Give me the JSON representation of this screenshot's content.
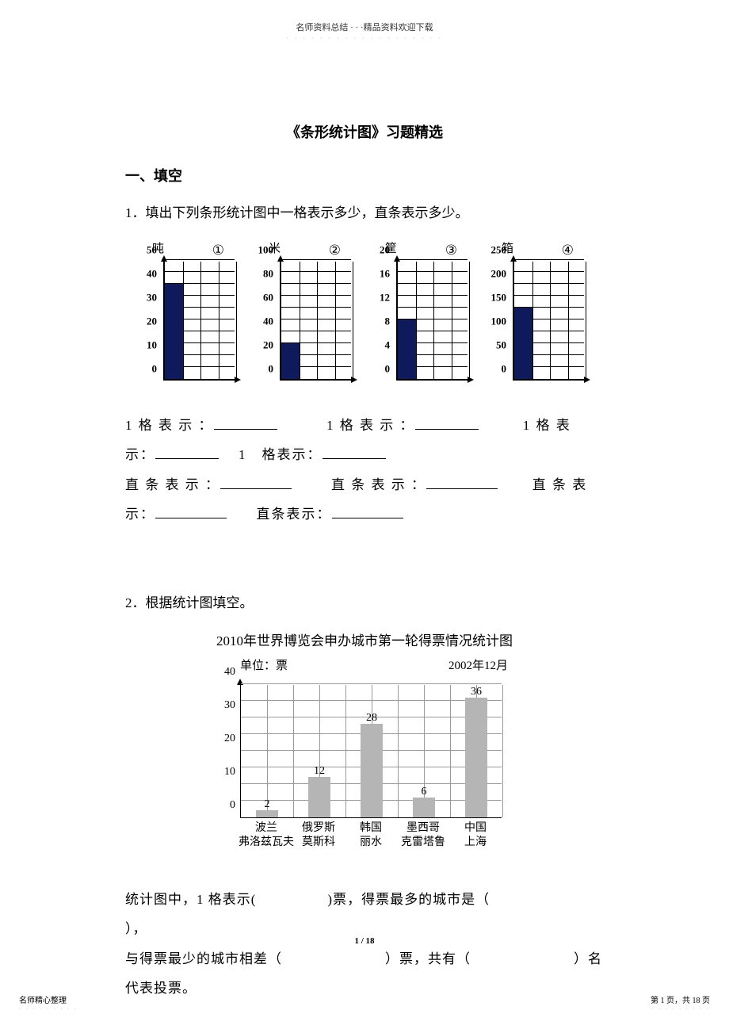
{
  "header": {
    "line1": "名师资料总结 · · ·精品资料欢迎下载",
    "dots": "· · · · · · · · · · · · · · · · · · ·"
  },
  "title": "《条形统计图》习题精选",
  "section": "一、填空",
  "q1": "1．填出下列条形统计图中一格表示多少，直条表示多少。",
  "mini_charts": [
    {
      "unit": "吨",
      "circle": "①",
      "ymax": 50,
      "ticks": [
        0,
        10,
        20,
        30,
        40,
        50
      ],
      "bar_value": 40,
      "bar_color": "#0e1a5c",
      "y_step": 10,
      "minor_lines": 10,
      "v_lines": 4
    },
    {
      "unit": "米",
      "circle": "②",
      "ymax": 100,
      "ticks": [
        0,
        20,
        40,
        60,
        80,
        100
      ],
      "bar_value": 30,
      "bar_color": "#0e1a5c",
      "y_step": 20,
      "minor_lines": 10,
      "v_lines": 4
    },
    {
      "unit": "筐",
      "circle": "③",
      "ymax": 20,
      "ticks": [
        0,
        4,
        8,
        12,
        16,
        20
      ],
      "bar_value": 10,
      "bar_color": "#0e1a5c",
      "y_step": 4,
      "minor_lines": 10,
      "v_lines": 4
    },
    {
      "unit": "箱",
      "circle": "④",
      "ymax": 250,
      "ticks": [
        0,
        50,
        100,
        150,
        200,
        250
      ],
      "bar_value": 150,
      "bar_color": "#0e1a5c",
      "y_step": 50,
      "minor_lines": 10,
      "v_lines": 4
    }
  ],
  "fill_block": {
    "row1_a": "1 格 表 示 ：",
    "row1_b": "1 格 表 示 ：",
    "row1_c": "1 格 表",
    "row2_a": "示：",
    "row2_b": "1　格表示：",
    "row3_a": "直 条 表 示 ：",
    "row3_b": "直 条 表 示 ：",
    "row3_c": "直 条 表",
    "row4_a": "示：",
    "row4_b": "直条表示："
  },
  "q2_head": "2．根据统计图填空。",
  "big_chart": {
    "title": "2010年世界博览会申办城市第一轮得票情况统计图",
    "unit_label": "单位：票",
    "date_label": "2002年12月",
    "ymax": 40,
    "yticks": [
      0,
      10,
      20,
      30,
      40
    ],
    "y_half_lines": [
      5,
      15,
      25,
      35
    ],
    "bar_color": "#b5b5b5",
    "grid_color": "#999999",
    "categories": [
      {
        "line1": "波兰",
        "line2": "弗洛兹瓦夫"
      },
      {
        "line1": "俄罗斯",
        "line2": "莫斯科"
      },
      {
        "line1": "韩国",
        "line2": "丽水"
      },
      {
        "line1": "墨西哥",
        "line2": "克雷塔鲁"
      },
      {
        "line1": "中国",
        "line2": "上海"
      }
    ],
    "values": [
      2,
      12,
      28,
      6,
      36
    ]
  },
  "q2_text": {
    "l1_a": "统计图中，1 格表示(",
    "l1_b": ")票，得票最多的城市是（",
    "l1_c": "），",
    "l2_a": "与得票最少的城市相差（",
    "l2_b": "）票，共有（",
    "l2_c": "）名",
    "l3": "代表投票。"
  },
  "page_footer": "1 / 18",
  "footer_left": "名师精心整理",
  "footer_right": "第 1 页，共 18 页",
  "footer_dots": "· · · · · · · · ·"
}
